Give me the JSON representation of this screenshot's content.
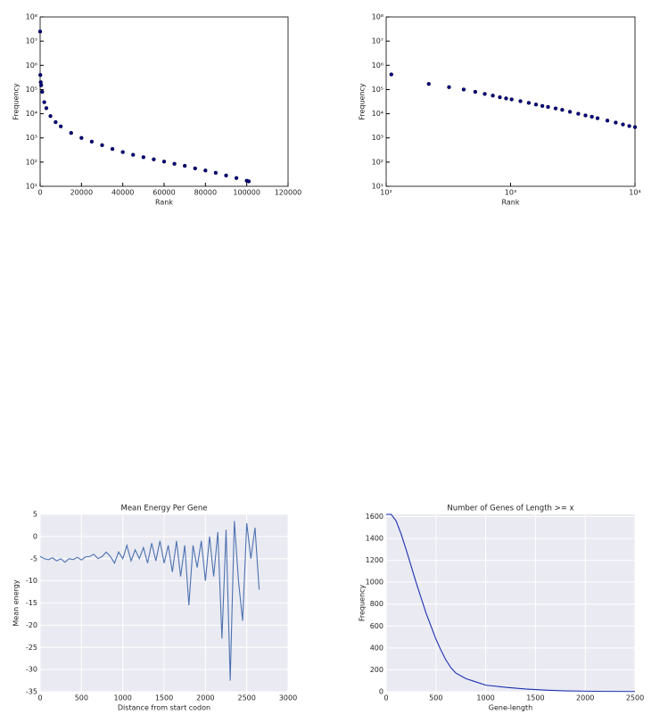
{
  "chart_data": [
    {
      "type": "scatter",
      "xlabel": "Rank",
      "ylabel": "Frequency",
      "color": "#00007f",
      "yscale": "log",
      "grid": false,
      "x": [
        1,
        100,
        300,
        500,
        1000,
        2000,
        3000,
        5000,
        7500,
        10000,
        15000,
        20000,
        25000,
        30000,
        35000,
        40000,
        45000,
        50000,
        55000,
        60000,
        65000,
        70000,
        75000,
        80000,
        85000,
        90000,
        95000,
        100000,
        101000
      ],
      "values": [
        25000000,
        400000,
        200000,
        150000,
        80000,
        30000,
        17000,
        8000,
        4500,
        3000,
        1600,
        1000,
        700,
        500,
        350,
        260,
        200,
        160,
        130,
        105,
        85,
        70,
        55,
        45,
        36,
        28,
        22,
        17,
        16
      ],
      "xlim": [
        0,
        120000
      ],
      "xticks": [
        0,
        20000,
        40000,
        60000,
        80000,
        100000,
        120000
      ],
      "ylim": [
        10,
        100000000
      ],
      "yticks": [
        {
          "value": 10,
          "label": "10¹"
        },
        {
          "value": 100,
          "label": "10²"
        },
        {
          "value": 1000,
          "label": "10³"
        },
        {
          "value": 10000,
          "label": "10⁴"
        },
        {
          "value": 100000,
          "label": "10⁵"
        },
        {
          "value": 1000000,
          "label": "10⁶"
        },
        {
          "value": 10000000,
          "label": "10⁷"
        },
        {
          "value": 100000000,
          "label": "10⁸"
        }
      ]
    },
    {
      "type": "scatter",
      "xlabel": "Rank",
      "ylabel": "Frequency",
      "color": "#00007f",
      "xscale": "log",
      "yscale": "log",
      "grid": false,
      "x": [
        110,
        220,
        320,
        420,
        520,
        620,
        720,
        820,
        920,
        1020,
        1200,
        1400,
        1600,
        1800,
        2000,
        2300,
        2600,
        3000,
        3500,
        4000,
        4500,
        5000,
        6000,
        7000,
        8000,
        9000,
        10000
      ],
      "values": [
        420000,
        170000,
        125000,
        100000,
        80000,
        66000,
        56000,
        48000,
        43000,
        39000,
        33000,
        28000,
        24000,
        21000,
        19000,
        16500,
        14500,
        12000,
        10000,
        8500,
        7500,
        6500,
        5200,
        4300,
        3600,
        3100,
        2800
      ],
      "xlim": [
        100,
        10000
      ],
      "xticks": [
        {
          "value": 100,
          "label": "10²"
        },
        {
          "value": 1000,
          "label": "10³"
        },
        {
          "value": 10000,
          "label": "10⁴"
        }
      ],
      "ylim": [
        10,
        100000000
      ],
      "yticks": [
        {
          "value": 10,
          "label": "10¹"
        },
        {
          "value": 100,
          "label": "10²"
        },
        {
          "value": 1000,
          "label": "10³"
        },
        {
          "value": 10000,
          "label": "10⁴"
        },
        {
          "value": 100000,
          "label": "10⁵"
        },
        {
          "value": 1000000,
          "label": "10⁶"
        },
        {
          "value": 10000000,
          "label": "10⁷"
        },
        {
          "value": 100000000,
          "label": "10⁸"
        }
      ]
    },
    {
      "type": "line",
      "title": "Mean Energy Per Gene",
      "xlabel": "Distance from start codon",
      "ylabel": "Mean energy",
      "color": "#4c72b0",
      "grid": true,
      "background": "#eaeaf2",
      "x": [
        0,
        50,
        100,
        150,
        200,
        250,
        300,
        350,
        400,
        450,
        500,
        550,
        600,
        650,
        700,
        750,
        800,
        850,
        900,
        950,
        1000,
        1050,
        1100,
        1150,
        1200,
        1250,
        1300,
        1350,
        1400,
        1450,
        1500,
        1550,
        1600,
        1650,
        1700,
        1750,
        1800,
        1850,
        1900,
        1950,
        2000,
        2050,
        2100,
        2150,
        2200,
        2250,
        2300,
        2350,
        2400,
        2450,
        2500,
        2550,
        2600,
        2650
      ],
      "values": [
        -4.5,
        -5,
        -5.2,
        -4.8,
        -5.5,
        -5,
        -5.8,
        -5,
        -5.2,
        -4.7,
        -5.3,
        -4.6,
        -4.5,
        -4,
        -5,
        -4.5,
        -3.5,
        -4.5,
        -6,
        -3.5,
        -5,
        -2,
        -5.5,
        -3,
        -5,
        -2.5,
        -6,
        -1.5,
        -5.5,
        -1,
        -6,
        -2,
        -8,
        -1,
        -9,
        -2,
        -15.5,
        -2,
        -7,
        -1,
        -10,
        0,
        -9,
        1,
        -23,
        1.5,
        -32.5,
        3.5,
        -10,
        -19,
        3,
        -5,
        2,
        -12
      ],
      "xlim": [
        0,
        3000
      ],
      "xticks": [
        0,
        500,
        1000,
        1500,
        2000,
        2500,
        3000
      ],
      "ylim": [
        -35,
        5
      ],
      "yticks": [
        -35,
        -30,
        -25,
        -20,
        -15,
        -10,
        -5,
        0,
        5
      ]
    },
    {
      "type": "line",
      "title": "Number of Genes of Length >= x",
      "xlabel": "Gene-length",
      "ylabel": "Frequency",
      "color": "#1a2fb0",
      "grid": true,
      "background": "#eaeaf2",
      "x": [
        0,
        50,
        100,
        150,
        200,
        250,
        300,
        350,
        400,
        450,
        500,
        550,
        600,
        650,
        700,
        800,
        900,
        1000,
        1200,
        1400,
        1600,
        1800,
        2000,
        2200,
        2500
      ],
      "values": [
        1620,
        1620,
        1560,
        1440,
        1300,
        1150,
        1000,
        860,
        720,
        600,
        480,
        380,
        290,
        220,
        170,
        120,
        90,
        60,
        40,
        25,
        15,
        8,
        5,
        3,
        2
      ],
      "xlim": [
        0,
        2500
      ],
      "xticks": [
        0,
        500,
        1000,
        1500,
        2000,
        2500
      ],
      "ylim": [
        0,
        1620
      ],
      "yticks": [
        0,
        200,
        400,
        600,
        800,
        1000,
        1200,
        1400,
        1600
      ]
    }
  ]
}
